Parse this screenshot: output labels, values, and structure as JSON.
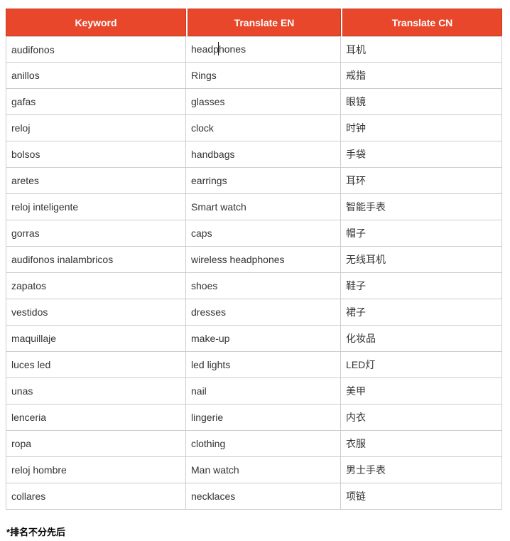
{
  "table": {
    "headers": [
      "Keyword",
      "Translate EN",
      "Translate CN"
    ],
    "rows": [
      {
        "keyword": "audifonos",
        "en": "headphones",
        "cn": "耳机"
      },
      {
        "keyword": "anillos",
        "en": "Rings",
        "cn": "戒指"
      },
      {
        "keyword": "gafas",
        "en": "glasses",
        "cn": "眼镜"
      },
      {
        "keyword": "reloj",
        "en": "clock",
        "cn": "时钟"
      },
      {
        "keyword": "bolsos",
        "en": "handbags",
        "cn": "手袋"
      },
      {
        "keyword": "aretes",
        "en": "earrings",
        "cn": "耳环"
      },
      {
        "keyword": "reloj inteligente",
        "en": "Smart watch",
        "cn": "智能手表"
      },
      {
        "keyword": "gorras",
        "en": "caps",
        "cn": "帽子"
      },
      {
        "keyword": "audifonos inalambricos",
        "en": "wireless headphones",
        "cn": "无线耳机"
      },
      {
        "keyword": "zapatos",
        "en": "shoes",
        "cn": "鞋子"
      },
      {
        "keyword": "vestidos",
        "en": "dresses",
        "cn": "裙子"
      },
      {
        "keyword": "maquillaje",
        "en": "make-up",
        "cn": "化妆品"
      },
      {
        "keyword": "luces led",
        "en": "led lights",
        "cn": "LED灯"
      },
      {
        "keyword": "unas",
        "en": "nail",
        "cn": "美甲"
      },
      {
        "keyword": "lenceria",
        "en": "lingerie",
        "cn": "内衣"
      },
      {
        "keyword": "ropa",
        "en": "clothing",
        "cn": "衣服"
      },
      {
        "keyword": "reloj hombre",
        "en": "Man watch",
        "cn": "男士手表"
      },
      {
        "keyword": "collares",
        "en": "necklaces",
        "cn": "项链"
      }
    ]
  },
  "caret": {
    "row_index": 0,
    "column": "en",
    "after_text": "headp"
  },
  "footnote": "*排名不分先后",
  "colors": {
    "header_bg": "#e8472b",
    "header_border": "#c63b1f",
    "header_text": "#ffffff",
    "grid_border": "#cccccc",
    "body_text": "#333333",
    "caret": "#111111"
  }
}
